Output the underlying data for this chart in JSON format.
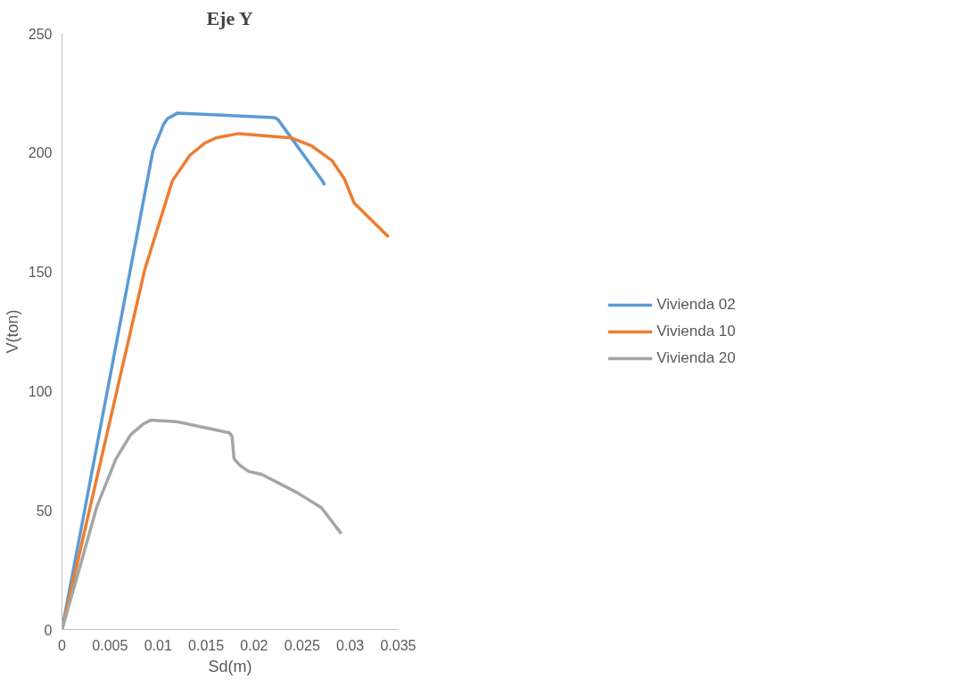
{
  "chart_data": {
    "type": "line",
    "title": "Eje Y",
    "xlabel": "Sd(m)",
    "ylabel": "V(ton)",
    "xlim": [
      0,
      0.035
    ],
    "xticks": [
      0,
      0.005,
      0.01,
      0.015,
      0.02,
      0.025,
      0.03,
      0.035
    ],
    "ylim": [
      0,
      250
    ],
    "yticks": [
      0,
      50,
      100,
      150,
      200,
      250
    ],
    "grid": false,
    "legend": "right",
    "marker": "none",
    "line_style": "solid",
    "series": [
      {
        "name": "Vivienda 02",
        "color": "#5b9bd5",
        "x": [
          0,
          0.00946,
          0.01057,
          0.01097,
          0.01203,
          0.02213,
          0.0225,
          0.02719,
          0.02732
        ],
        "values": [
          0,
          200.6,
          211.8,
          214.2,
          216.6,
          214.7,
          213.8,
          187.7,
          186.3
        ]
      },
      {
        "name": "Vivienda 10",
        "color": "#ed7d31",
        "x": [
          0,
          0.00862,
          0.01149,
          0.01331,
          0.01487,
          0.01603,
          0.01838,
          0.02384,
          0.02592,
          0.02807,
          0.02937,
          0.03041,
          0.034
        ],
        "values": [
          0,
          151.0,
          188.2,
          198.9,
          204.0,
          206.2,
          208.0,
          206.2,
          203.0,
          196.8,
          189.2,
          178.9,
          164.6
        ]
      },
      {
        "name": "Vivienda 20",
        "color": "#a5a5a5",
        "x": [
          0,
          0.00205,
          0.00361,
          0.00561,
          0.00715,
          0.00845,
          0.00924,
          0.01189,
          0.01426,
          0.01744,
          0.0177,
          0.01791,
          0.01851,
          0.01944,
          0.02031,
          0.02076,
          0.02444,
          0.027,
          0.02907
        ],
        "values": [
          0,
          28.9,
          51.3,
          71.5,
          81.7,
          86.2,
          87.8,
          87.2,
          85.2,
          82.5,
          81.0,
          71.6,
          68.9,
          66.3,
          65.5,
          65.1,
          57.5,
          51.1,
          40.2
        ]
      }
    ]
  }
}
